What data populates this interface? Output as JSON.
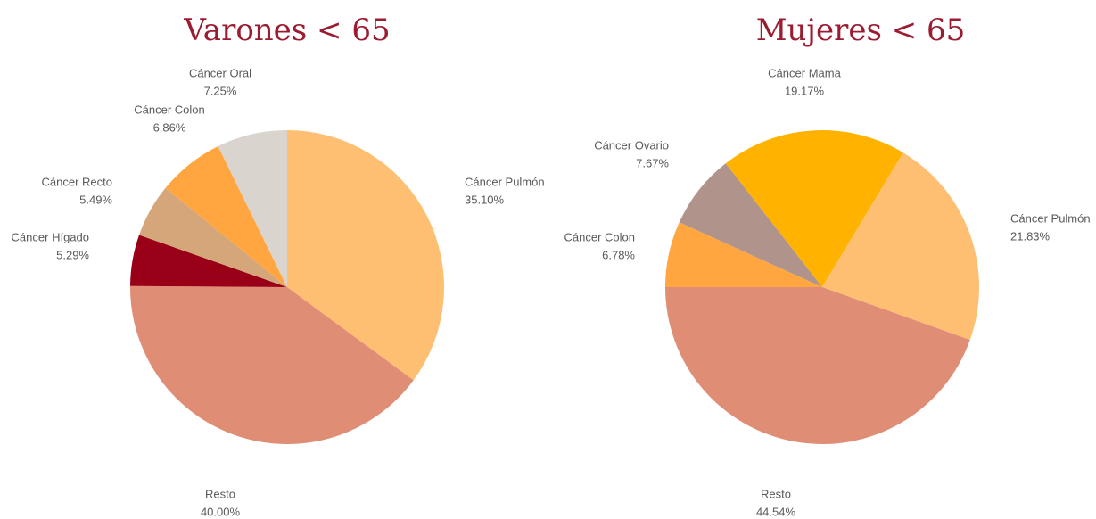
{
  "chart_data": [
    {
      "type": "pie",
      "title": "Varones < 65",
      "categories": [
        "Cáncer Pulmón",
        "Resto",
        "Cáncer Hígado",
        "Cáncer Recto",
        "Cáncer Colon",
        "Cáncer Oral"
      ],
      "values": [
        35.1,
        40.0,
        5.29,
        5.49,
        6.86,
        7.25
      ],
      "value_labels": [
        "35.10%",
        "40.00%",
        "5.29%",
        "5.49%",
        "6.86%",
        "7.25%"
      ],
      "colors": [
        "#FFBF73",
        "#DF8E75",
        "#990017",
        "#D4A67A",
        "#FFA640",
        "#DAD4CF"
      ]
    },
    {
      "type": "pie",
      "title": "Mujeres < 65",
      "categories": [
        "Cáncer Mama",
        "Cáncer Pulmón",
        "Resto",
        "Cáncer Colon",
        "Cáncer Ovario"
      ],
      "values": [
        19.17,
        21.83,
        44.54,
        6.78,
        7.67
      ],
      "value_labels": [
        "19.17%",
        "21.83%",
        "44.54%",
        "6.78%",
        "7.67%"
      ],
      "colors": [
        "#FFB300",
        "#FFBF73",
        "#DF8E75",
        "#FFA640",
        "#B0948C"
      ]
    }
  ]
}
